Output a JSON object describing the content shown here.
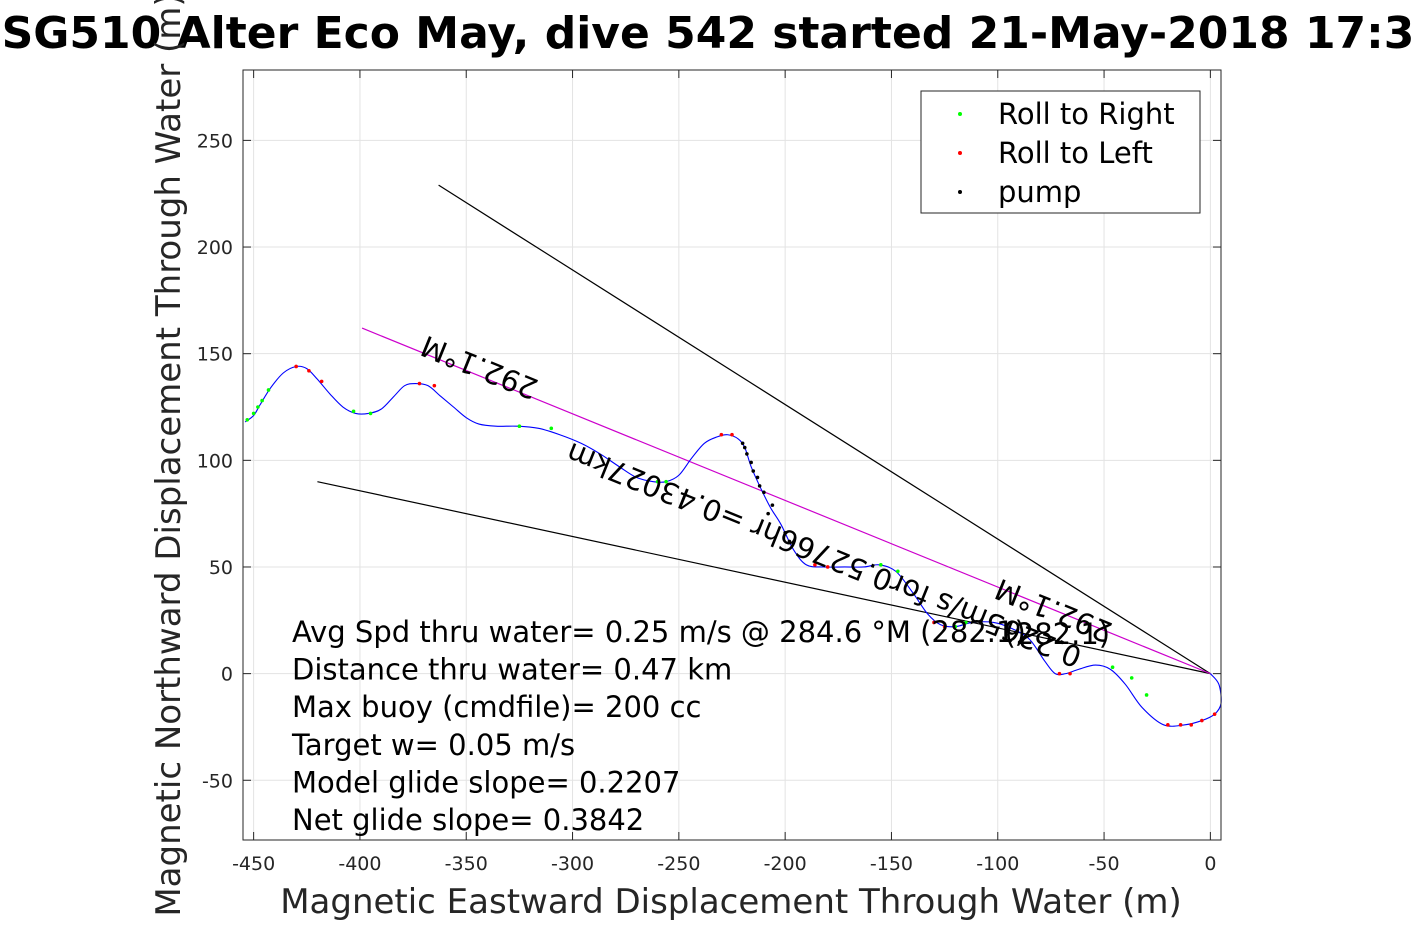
{
  "chart_data": {
    "type": "line",
    "title": "SG510 Alter Eco May, dive 542 started 21-May-2018 17:3",
    "xlabel": "Magnetic Eastward Displacement Through Water (m)",
    "ylabel": "Magnetic Northward Displacement Through Water (m)",
    "xlim": [
      -455,
      5
    ],
    "ylim": [
      -78,
      283
    ],
    "xticks": [
      -450,
      -400,
      -350,
      -300,
      -250,
      -200,
      -150,
      -100,
      -50,
      0
    ],
    "xtick_labels": [
      "-450",
      "-400",
      "-350",
      "-300",
      "-250",
      "-200",
      "-150",
      "-100",
      "-50",
      "0"
    ],
    "yticks": [
      -50,
      0,
      50,
      100,
      150,
      200,
      250
    ],
    "ytick_labels": [
      "-50",
      "0",
      "50",
      "100",
      "150",
      "200",
      "250"
    ],
    "grid": true,
    "legend": {
      "placement": "top-right",
      "entries": [
        {
          "label": "Roll to Right",
          "color": "#00ff00"
        },
        {
          "label": "Roll to Left",
          "color": "#ff0000"
        },
        {
          "label": "pump",
          "color": "#000000"
        }
      ]
    },
    "track": {
      "color": "#0000ff",
      "points": [
        [
          0,
          0
        ],
        [
          4,
          -5
        ],
        [
          5,
          -14
        ],
        [
          2,
          -19
        ],
        [
          -4,
          -22
        ],
        [
          -12,
          -24
        ],
        [
          -22,
          -24
        ],
        [
          -32,
          -16
        ],
        [
          -40,
          -5
        ],
        [
          -47,
          2
        ],
        [
          -54,
          4
        ],
        [
          -62,
          2
        ],
        [
          -68,
          0
        ],
        [
          -73,
          0
        ],
        [
          -78,
          6
        ],
        [
          -85,
          16
        ],
        [
          -93,
          21
        ],
        [
          -102,
          24
        ],
        [
          -112,
          24
        ],
        [
          -120,
          22
        ],
        [
          -127,
          23
        ],
        [
          -133,
          28
        ],
        [
          -140,
          38
        ],
        [
          -148,
          48
        ],
        [
          -156,
          51
        ],
        [
          -163,
          50
        ],
        [
          -172,
          50
        ],
        [
          -182,
          50
        ],
        [
          -190,
          51
        ],
        [
          -196,
          58
        ],
        [
          -202,
          70
        ],
        [
          -207,
          78
        ],
        [
          -212,
          88
        ],
        [
          -216,
          97
        ],
        [
          -219,
          106
        ],
        [
          -222,
          110
        ],
        [
          -227,
          112
        ],
        [
          -232,
          111
        ],
        [
          -238,
          108
        ],
        [
          -244,
          101
        ],
        [
          -250,
          93
        ],
        [
          -256,
          90
        ],
        [
          -262,
          90
        ],
        [
          -270,
          92
        ],
        [
          -278,
          97
        ],
        [
          -287,
          103
        ],
        [
          -296,
          108
        ],
        [
          -306,
          112
        ],
        [
          -316,
          115
        ],
        [
          -326,
          116
        ],
        [
          -336,
          116
        ],
        [
          -344,
          117
        ],
        [
          -350,
          120
        ],
        [
          -356,
          125
        ],
        [
          -362,
          130
        ],
        [
          -368,
          135
        ],
        [
          -374,
          136
        ],
        [
          -379,
          135
        ],
        [
          -384,
          130
        ],
        [
          -390,
          124
        ],
        [
          -396,
          122
        ],
        [
          -402,
          122
        ],
        [
          -408,
          125
        ],
        [
          -414,
          131
        ],
        [
          -420,
          138
        ],
        [
          -425,
          143
        ],
        [
          -430,
          144
        ],
        [
          -436,
          141
        ],
        [
          -442,
          134
        ],
        [
          -447,
          126
        ],
        [
          -450,
          121
        ],
        [
          -454,
          118
        ]
      ]
    },
    "markers": {
      "roll_right": {
        "color": "#00ff00",
        "points": [
          [
            -46,
            3
          ],
          [
            -37,
            -2
          ],
          [
            -30,
            -10
          ],
          [
            -120,
            22
          ],
          [
            -115,
            24
          ],
          [
            -147,
            48
          ],
          [
            -155,
            51
          ],
          [
            -260,
            90
          ],
          [
            -256,
            90
          ],
          [
            -310,
            115
          ],
          [
            -325,
            116
          ],
          [
            -395,
            122
          ],
          [
            -403,
            123
          ],
          [
            -446,
            128
          ],
          [
            -450,
            122
          ],
          [
            -453,
            119
          ],
          [
            -443,
            133
          ],
          [
            -448,
            125
          ]
        ]
      },
      "roll_left": {
        "color": "#ff0000",
        "points": [
          [
            -4,
            -22
          ],
          [
            -9,
            -24
          ],
          [
            -14,
            -24
          ],
          [
            -20,
            -24
          ],
          [
            2,
            -19
          ],
          [
            -66,
            0
          ],
          [
            -71,
            0
          ],
          [
            -125,
            22
          ],
          [
            -130,
            24
          ],
          [
            -180,
            50
          ],
          [
            -186,
            51
          ],
          [
            -225,
            112
          ],
          [
            -230,
            112
          ],
          [
            -365,
            135
          ],
          [
            -372,
            136
          ],
          [
            -430,
            144
          ],
          [
            -424,
            142
          ],
          [
            -418,
            137
          ]
        ]
      },
      "pump": {
        "color": "#000000",
        "points": [
          [
            -206,
            79
          ],
          [
            -208,
            75
          ],
          [
            -210,
            85
          ],
          [
            -212,
            88
          ],
          [
            -213,
            92
          ],
          [
            -215,
            95
          ],
          [
            -216,
            99
          ],
          [
            -218,
            103
          ],
          [
            -219,
            106
          ],
          [
            -220,
            108
          ],
          [
            -200,
            66
          ],
          [
            -198,
            62
          ]
        ]
      }
    },
    "reference_lines": [
      {
        "name": "upper",
        "color": "#000000",
        "points": [
          [
            0,
            0
          ],
          [
            -363,
            229
          ]
        ]
      },
      {
        "name": "lower",
        "color": "#000000",
        "points": [
          [
            0,
            0
          ],
          [
            -420,
            90
          ]
        ]
      },
      {
        "name": "heading",
        "color": "#cc00cc",
        "points": [
          [
            0,
            0
          ],
          [
            -399,
            162
          ]
        ]
      }
    ],
    "rotated_annotations": [
      {
        "text": "292.1°M",
        "x": -342,
        "y": 148,
        "angle": 22
      },
      {
        "text": "0.2265m/s for0.52766hr =0.43027km",
        "x": -180,
        "y": 60,
        "angle": 22
      },
      {
        "text": "292.1°M",
        "x": -72,
        "y": 34,
        "angle": 22
      },
      {
        "text": "(282.1)",
        "x": -72,
        "y": 14,
        "angle": 0
      }
    ],
    "annotations": [
      "Avg Spd thru water=  0.25 m/s @ 284.6  °M (282.1)",
      "Distance thru water=  0.47 km",
      "Max buoy (cmdfile)= 200 cc",
      "Target w= 0.05 m/s",
      "Model glide slope= 0.2207",
      "Net glide slope= 0.3842"
    ]
  }
}
